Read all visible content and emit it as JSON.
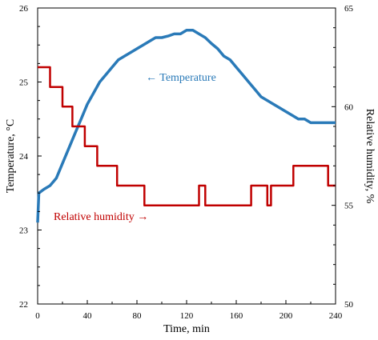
{
  "chart_data": {
    "type": "line",
    "xlabel": "Time, min",
    "ylabel_left": "Temperature, °C",
    "ylabel_right": "Relative humidity, %",
    "xlim": [
      0,
      240
    ],
    "ylim_left": [
      22,
      26
    ],
    "ylim_right": [
      50,
      65
    ],
    "x_ticks": [
      "0",
      "40",
      "80",
      "120",
      "160",
      "200",
      "240"
    ],
    "y_left_ticks": [
      "22",
      "23",
      "24",
      "25",
      "26"
    ],
    "y_right_ticks": [
      "50",
      "55",
      "60",
      "65"
    ],
    "grid": false,
    "annotations": {
      "temperature": "← Temperature",
      "humidity": "Relative humidity →"
    },
    "colors": {
      "temperature": "#2a7ab8",
      "humidity": "#c00000"
    },
    "series": [
      {
        "axis": "left",
        "points": [
          [
            0,
            23.1
          ],
          [
            1,
            23.5
          ],
          [
            5,
            23.55
          ],
          [
            10,
            23.6
          ],
          [
            15,
            23.7
          ],
          [
            20,
            23.9
          ],
          [
            25,
            24.1
          ],
          [
            30,
            24.3
          ],
          [
            35,
            24.5
          ],
          [
            40,
            24.7
          ],
          [
            45,
            24.85
          ],
          [
            50,
            25.0
          ],
          [
            55,
            25.1
          ],
          [
            60,
            25.2
          ],
          [
            65,
            25.3
          ],
          [
            70,
            25.35
          ],
          [
            75,
            25.4
          ],
          [
            80,
            25.45
          ],
          [
            85,
            25.5
          ],
          [
            90,
            25.55
          ],
          [
            95,
            25.6
          ],
          [
            100,
            25.6
          ],
          [
            105,
            25.62
          ],
          [
            110,
            25.65
          ],
          [
            115,
            25.65
          ],
          [
            120,
            25.7
          ],
          [
            125,
            25.7
          ],
          [
            130,
            25.65
          ],
          [
            135,
            25.6
          ],
          [
            140,
            25.52
          ],
          [
            145,
            25.45
          ],
          [
            150,
            25.35
          ],
          [
            155,
            25.3
          ],
          [
            160,
            25.2
          ],
          [
            165,
            25.1
          ],
          [
            170,
            25.0
          ],
          [
            175,
            24.9
          ],
          [
            180,
            24.8
          ],
          [
            185,
            24.75
          ],
          [
            190,
            24.7
          ],
          [
            195,
            24.65
          ],
          [
            200,
            24.6
          ],
          [
            205,
            24.55
          ],
          [
            210,
            24.5
          ],
          [
            215,
            24.5
          ],
          [
            220,
            24.45
          ],
          [
            225,
            24.45
          ],
          [
            230,
            24.45
          ],
          [
            235,
            24.45
          ],
          [
            240,
            24.45
          ]
        ]
      },
      {
        "axis": "right",
        "points": [
          [
            0,
            62.0
          ],
          [
            10,
            62.0
          ],
          [
            10,
            61.0
          ],
          [
            20,
            61.0
          ],
          [
            20,
            60.0
          ],
          [
            28,
            60.0
          ],
          [
            28,
            59.0
          ],
          [
            38,
            59.0
          ],
          [
            38,
            58.0
          ],
          [
            48,
            58.0
          ],
          [
            48,
            57.0
          ],
          [
            64,
            57.0
          ],
          [
            64,
            56.0
          ],
          [
            86,
            56.0
          ],
          [
            86,
            55.0
          ],
          [
            130,
            55.0
          ],
          [
            130,
            56.0
          ],
          [
            135,
            56.0
          ],
          [
            135,
            55.0
          ],
          [
            172,
            55.0
          ],
          [
            172,
            56.0
          ],
          [
            185,
            56.0
          ],
          [
            185,
            55.0
          ],
          [
            188,
            55.0
          ],
          [
            188,
            56.0
          ],
          [
            206,
            56.0
          ],
          [
            206,
            57.0
          ],
          [
            234,
            57.0
          ],
          [
            234,
            56.0
          ],
          [
            240,
            56.0
          ]
        ]
      }
    ]
  }
}
